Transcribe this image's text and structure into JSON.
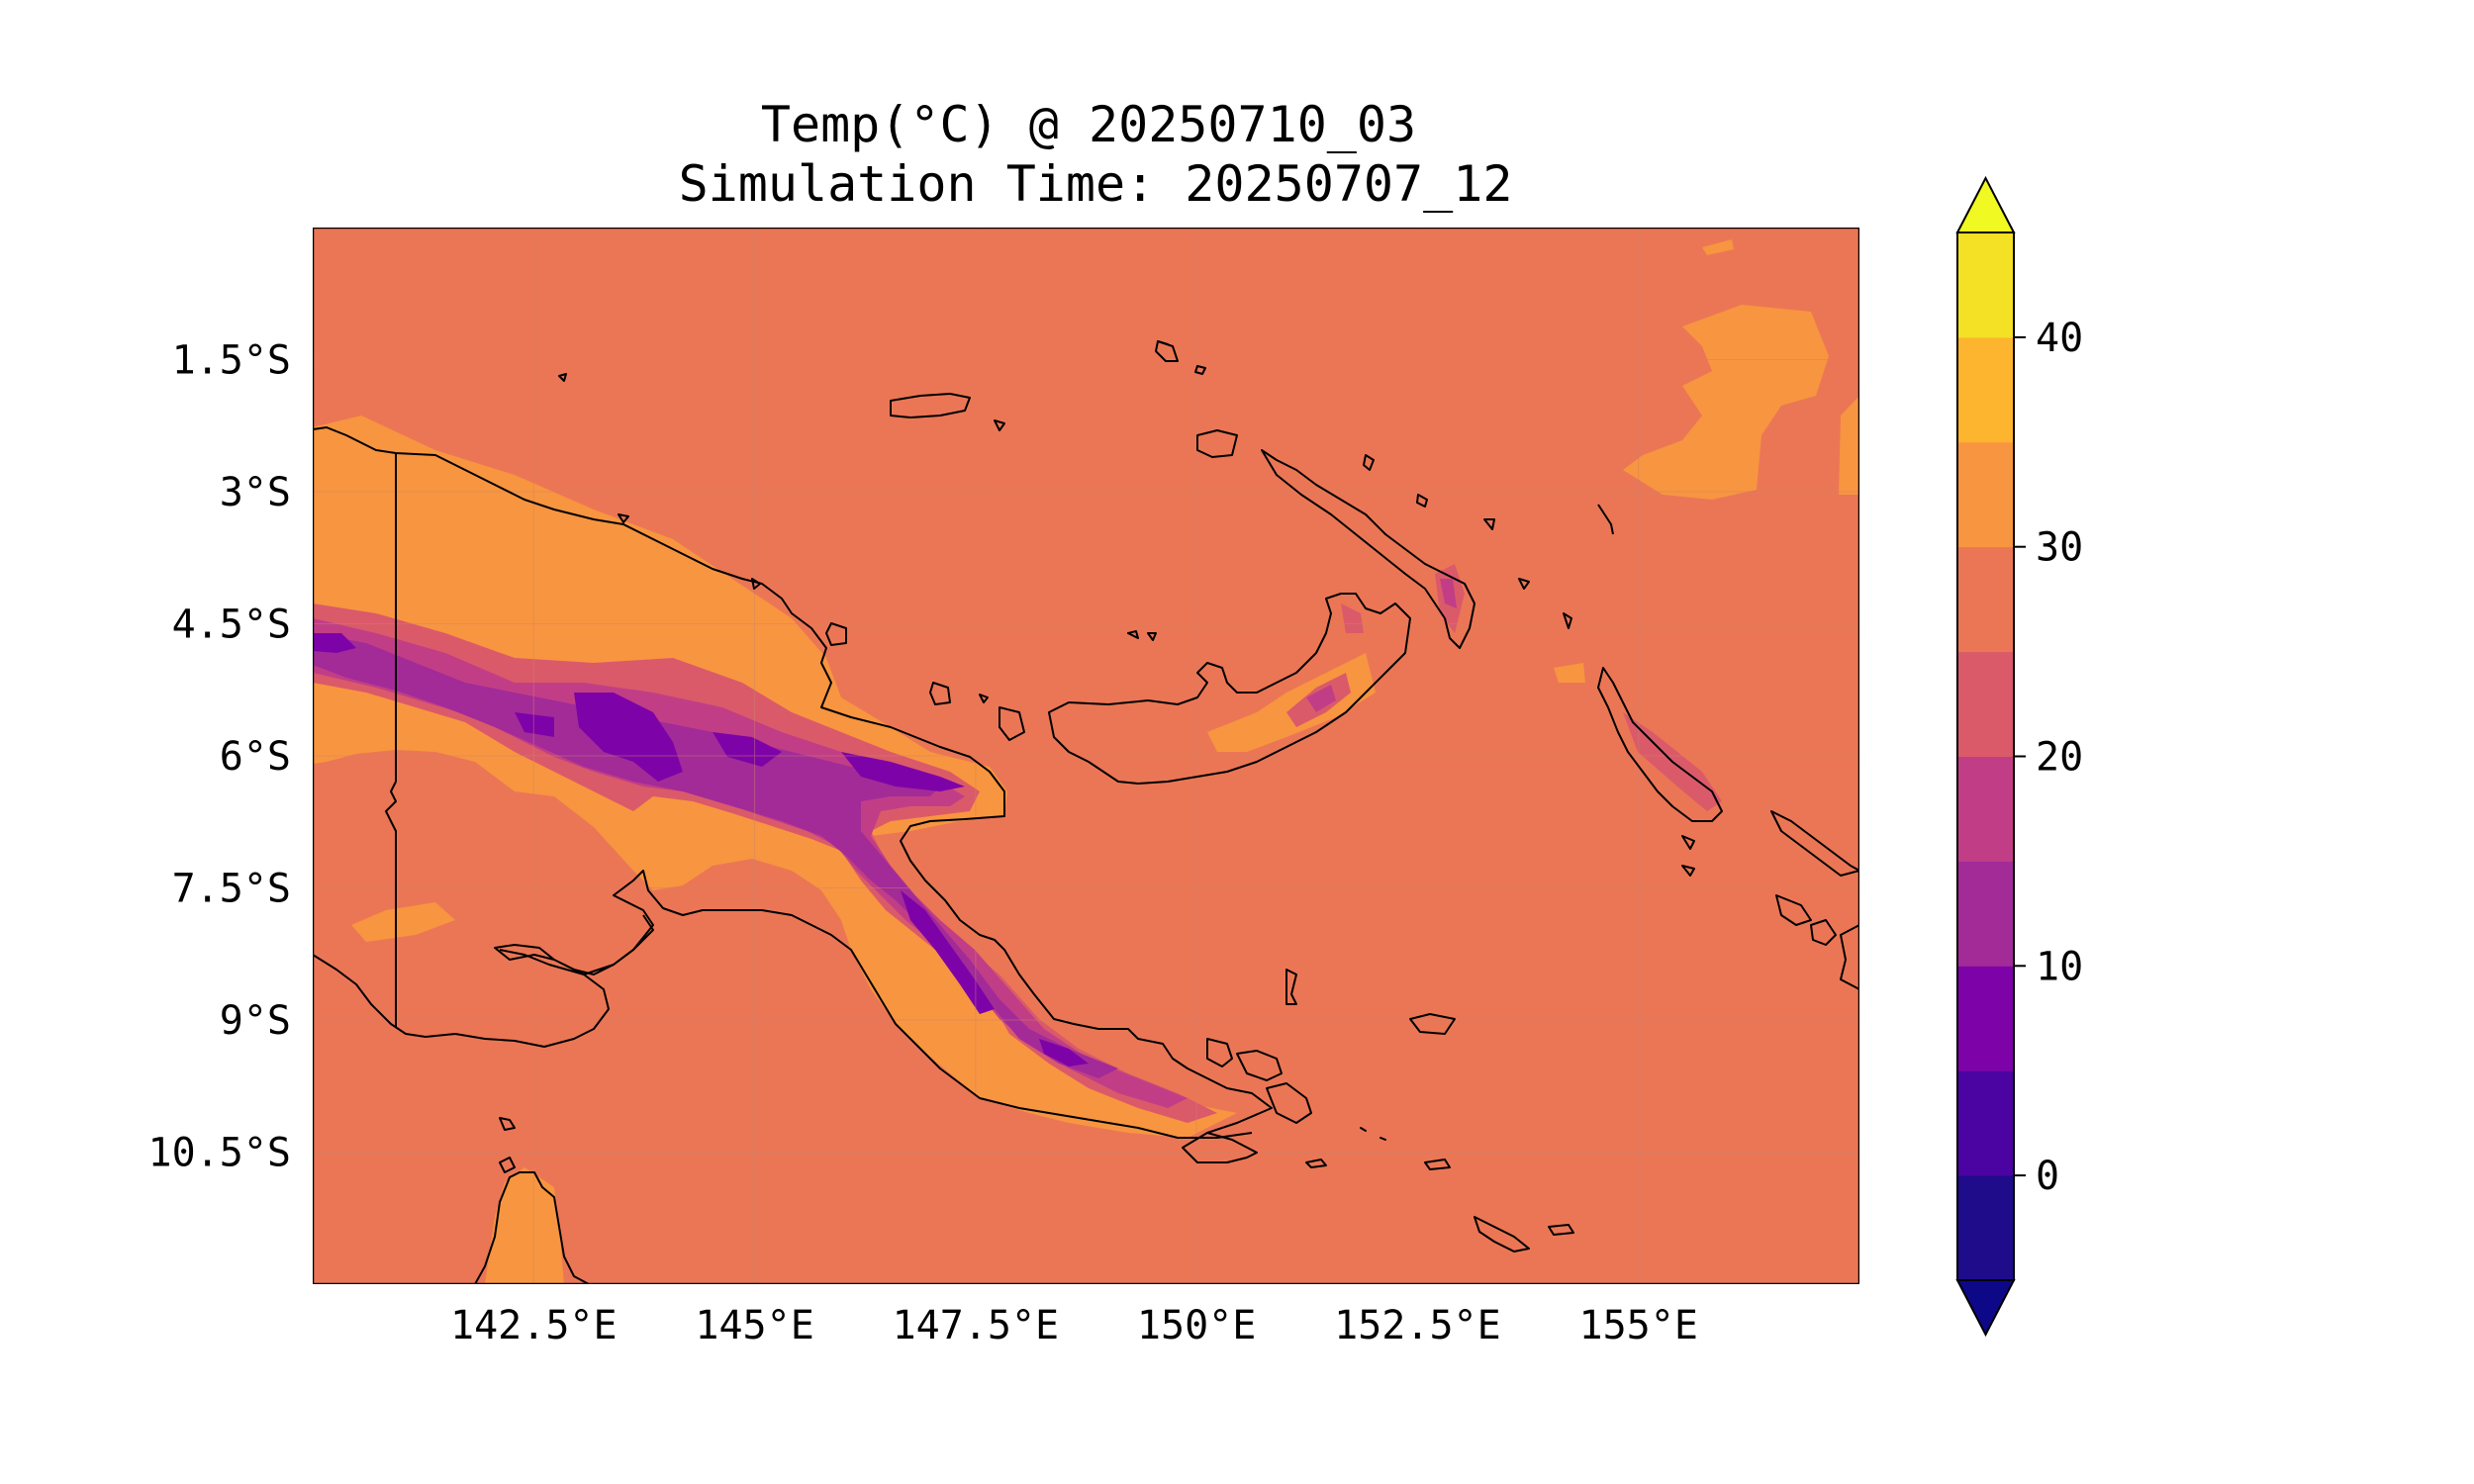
{
  "title_line1": "Temp(°C) @ 20250710_03",
  "title_line2": "Simulation Time: 20250707_12",
  "chart_data": {
    "type": "heatmap",
    "variable": "Temp(°C)",
    "lon_range": [
      140,
      157.5
    ],
    "lat_range": [
      -12,
      0
    ],
    "x_ticks": [
      {
        "value": 142.5,
        "label": "142.5°E"
      },
      {
        "value": 145,
        "label": "145°E"
      },
      {
        "value": 147.5,
        "label": "147.5°E"
      },
      {
        "value": 150,
        "label": "150°E"
      },
      {
        "value": 152.5,
        "label": "152.5°E"
      },
      {
        "value": 155,
        "label": "155°E"
      }
    ],
    "y_ticks": [
      {
        "value": -1.5,
        "label": "1.5°S"
      },
      {
        "value": -3,
        "label": "3°S"
      },
      {
        "value": -4.5,
        "label": "4.5°S"
      },
      {
        "value": -6,
        "label": "6°S"
      },
      {
        "value": -7.5,
        "label": "7.5°S"
      },
      {
        "value": -9,
        "label": "9°S"
      },
      {
        "value": -10.5,
        "label": "10.5°S"
      }
    ],
    "colorbar": {
      "levels": [
        -5,
        0,
        5,
        10,
        15,
        20,
        25,
        30,
        35,
        40,
        45
      ],
      "colors": [
        "#1f0c8a",
        "#4b03a1",
        "#7d03a8",
        "#a22b98",
        "#c13e86",
        "#da5a6a",
        "#eb7655",
        "#f89540",
        "#fdb42f",
        "#f4e025"
      ],
      "under_color": "#0d0887",
      "over_color": "#f0f921",
      "ticks": [
        {
          "value": 0,
          "label": "0"
        },
        {
          "value": 10,
          "label": "10"
        },
        {
          "value": 20,
          "label": "20"
        },
        {
          "value": 30,
          "label": "30"
        },
        {
          "value": 40,
          "label": "40"
        }
      ],
      "extend": "both"
    },
    "background_class": "25–30",
    "grid": true
  }
}
